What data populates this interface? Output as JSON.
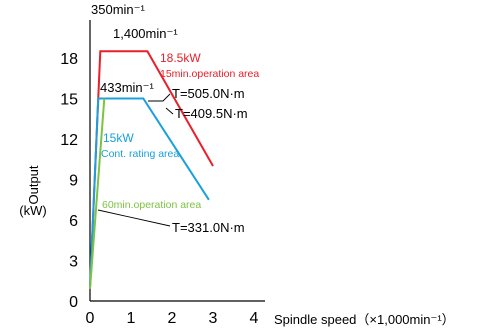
{
  "chart_data": {
    "type": "line",
    "xlabel": "Spindle speed（×1,000min⁻¹）",
    "ylabel_line1": "Output",
    "ylabel_line2": "(kW)",
    "xlim": [
      0,
      4
    ],
    "ylim": [
      0,
      20
    ],
    "x_ticks": [
      "0",
      "1",
      "2",
      "3",
      "4"
    ],
    "y_ticks": [
      "0",
      "3",
      "6",
      "9",
      "12",
      "15",
      "18"
    ],
    "grid": false,
    "series": [
      {
        "name": "15min.operation area",
        "color": "#e8202a",
        "points": [
          [
            0.0,
            1.0
          ],
          [
            0.25,
            18.5
          ],
          [
            1.4,
            18.5
          ],
          [
            3.0,
            10.0
          ]
        ]
      },
      {
        "name": "Cont. rating area",
        "color": "#1aa0dc",
        "points": [
          [
            0.0,
            1.0
          ],
          [
            0.2,
            15.0
          ],
          [
            1.3,
            15.0
          ],
          [
            2.9,
            7.5
          ]
        ]
      },
      {
        "name": "60min.operation area",
        "color": "#7dc242",
        "points": [
          [
            0.0,
            0.9
          ],
          [
            0.35,
            15.0
          ]
        ]
      }
    ],
    "annotations": {
      "speed_350": "350min⁻¹",
      "speed_1400": "1,400min⁻¹",
      "speed_433": "433min⁻¹",
      "red_kw": "18.5kW",
      "red_area": "15min.operation area",
      "blue_kw": "15kW",
      "blue_area": "Cont. rating area",
      "green_area": "60min.operation area",
      "torque_505": "T=505.0N·m",
      "torque_4095": "T=409.5N·m",
      "torque_331": "T=331.0N·m"
    }
  }
}
